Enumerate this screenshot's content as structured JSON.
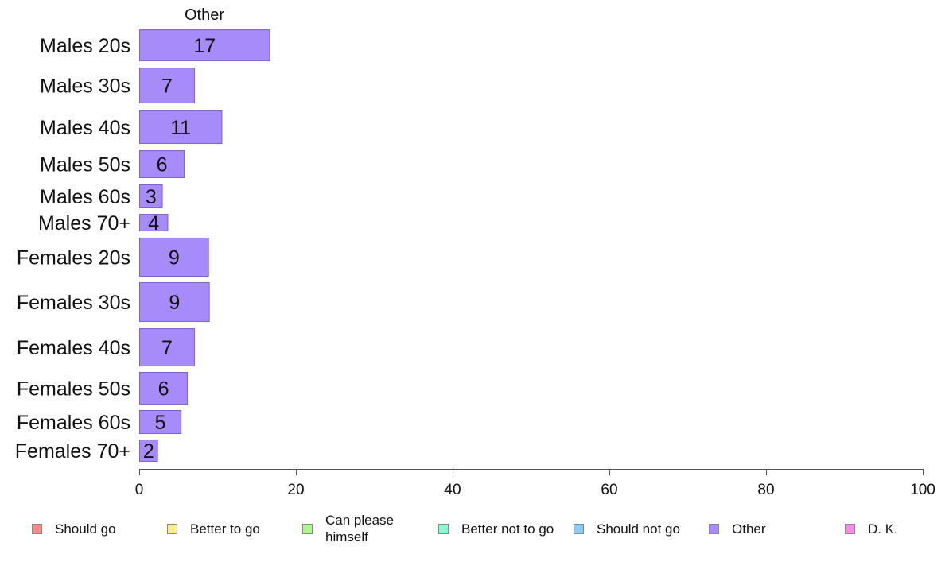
{
  "chart_data": {
    "type": "bar",
    "orientation": "horizontal",
    "title": "Other",
    "categories": [
      "Males 20s",
      "Males 30s",
      "Males 40s",
      "Males 50s",
      "Males 60s",
      "Males 70+",
      "Females 20s",
      "Females 30s",
      "Females 40s",
      "Females 50s",
      "Females 60s",
      "Females 70+"
    ],
    "values": [
      17,
      7,
      11,
      6,
      3,
      4,
      9,
      9,
      7,
      6,
      5,
      2
    ],
    "bar_values": [
      16.7,
      7.1,
      10.6,
      5.8,
      3.0,
      3.7,
      8.9,
      9.0,
      7.1,
      6.2,
      5.4,
      2.4
    ],
    "xlim": [
      0,
      100
    ],
    "xticks": [
      "0",
      "20",
      "40",
      "60",
      "80",
      "100"
    ],
    "bar_color": "#a78bfa",
    "bar_border": "#7c64c9",
    "grid": false,
    "legend_position": "bottom",
    "legend": [
      {
        "label": "Should go",
        "color": "#f88b8b"
      },
      {
        "label": "Better to go",
        "color": "#fdef8b"
      },
      {
        "label": "Can please himself",
        "color": "#acf88b"
      },
      {
        "label": "Better not to go",
        "color": "#8bf8cf"
      },
      {
        "label": "Should not go",
        "color": "#8bcbf8"
      },
      {
        "label": "Other",
        "color": "#a78bfa"
      },
      {
        "label": "D. K.",
        "color": "#f88bea"
      }
    ]
  }
}
